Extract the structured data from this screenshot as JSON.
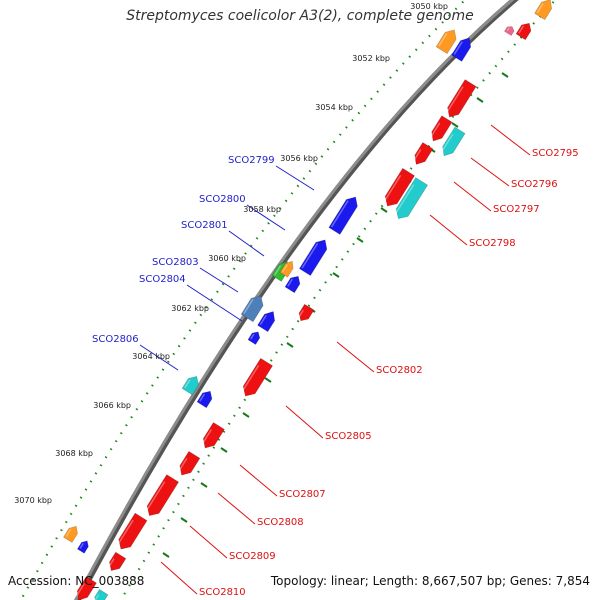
{
  "title": "Streptomyces coelicolor A3(2), complete genome",
  "accession": "Accession: NC_003888",
  "stats": "Topology: linear; Length: 8,667,507 bp; Genes: 7,854",
  "colors": {
    "backbone": "#8c8c8c",
    "forward_label": "#1f1fcc",
    "reverse_label": "#dd1111",
    "tick_dots": "#1a8a1a",
    "red": "#ee1111",
    "blue": "#1a1aee",
    "cyan": "#22cccc",
    "orange": "#ff9922",
    "green": "#33bb33",
    "steel": "#4d7fb8",
    "pink": "#ee6688"
  },
  "kbp_labels": [
    "3050 kbp",
    "3052 kbp",
    "3054 kbp",
    "3056 kbp",
    "3058 kbp",
    "3060 kbp",
    "3062 kbp",
    "3064 kbp",
    "3066 kbp",
    "3068 kbp",
    "3070 kbp"
  ],
  "forward_gene_labels": [
    "SCO2799",
    "SCO2800",
    "SCO2801",
    "SCO2803",
    "SCO2804",
    "SCO2806"
  ],
  "reverse_gene_labels": [
    "SCO2795",
    "SCO2796",
    "SCO2797",
    "SCO2798",
    "SCO2802",
    "SCO2805",
    "SCO2807",
    "SCO2808",
    "SCO2809",
    "SCO2810"
  ]
}
